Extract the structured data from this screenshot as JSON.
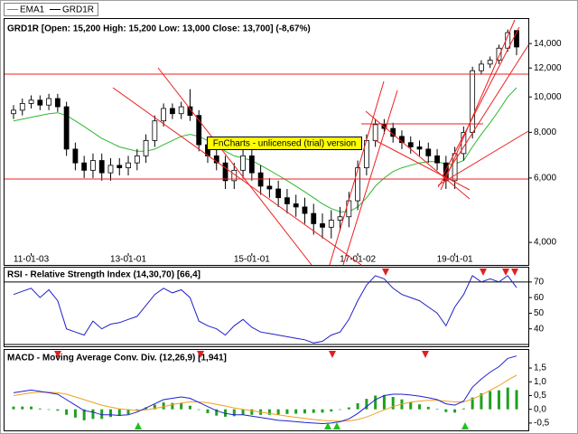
{
  "chart_data": [
    {
      "type": "candlestick",
      "name": "GRD1R",
      "title": "GRD1R [Open: 15,200  High: 15,200  Low: 13,000  Close: 13,700] (-8,67%)",
      "watermark": "FnCharts - unlicensed (trial) version",
      "categories": [
        null,
        null,
        "11-01-03",
        null,
        null,
        null,
        null,
        null,
        null,
        null,
        null,
        null,
        null,
        "13-01-01",
        null,
        null,
        null,
        null,
        null,
        null,
        null,
        null,
        null,
        null,
        null,
        null,
        null,
        "15-01-01",
        null,
        null,
        null,
        null,
        null,
        null,
        null,
        null,
        null,
        null,
        null,
        "17-01-02",
        null,
        null,
        null,
        null,
        null,
        null,
        null,
        null,
        null,
        null,
        "19-01-01",
        null,
        null,
        null,
        null,
        null,
        null,
        null
      ],
      "open": [
        9000,
        9200,
        9600,
        9800,
        9500,
        9900,
        9400,
        7200,
        6600,
        6300,
        6700,
        6200,
        6500,
        6400,
        6600,
        6900,
        7600,
        8600,
        9300,
        9000,
        9400,
        8900,
        7400,
        6900,
        6600,
        5900,
        6300,
        6900,
        6200,
        5700,
        5600,
        5300,
        5100,
        5000,
        4800,
        4500,
        4400,
        4600,
        4700,
        5200,
        6400,
        7600,
        8400,
        8200,
        7800,
        7500,
        7300,
        7200,
        6900,
        6600,
        5900,
        7000,
        8000,
        11800,
        12300,
        12600,
        13600,
        15200
      ],
      "high": [
        9500,
        9900,
        10100,
        10100,
        10200,
        10200,
        9700,
        7500,
        6900,
        7000,
        7000,
        6800,
        6800,
        6900,
        7200,
        7900,
        8900,
        9600,
        9600,
        9700,
        10500,
        9200,
        7700,
        7200,
        6900,
        6600,
        7200,
        7200,
        6500,
        6000,
        5900,
        5600,
        5400,
        5300,
        5100,
        4800,
        4900,
        5000,
        5500,
        6700,
        7900,
        8700,
        8700,
        8500,
        8100,
        7800,
        7600,
        7500,
        7200,
        6900,
        7300,
        8300,
        12100,
        12600,
        12900,
        13900,
        15300,
        15200
      ],
      "low": [
        8700,
        8900,
        9300,
        9200,
        9200,
        9100,
        6900,
        6300,
        6000,
        6000,
        5900,
        5900,
        6100,
        6100,
        6300,
        6600,
        7300,
        8300,
        8700,
        8700,
        8600,
        7100,
        6600,
        6300,
        5600,
        5600,
        6000,
        5900,
        5400,
        5300,
        5000,
        4800,
        4700,
        4500,
        4200,
        4100,
        4100,
        4300,
        4400,
        4900,
        6100,
        7300,
        7900,
        7500,
        7200,
        7000,
        6900,
        6600,
        6300,
        5600,
        5600,
        6700,
        7700,
        11500,
        12000,
        12300,
        13300,
        13000
      ],
      "close": [
        9200,
        9600,
        9800,
        9500,
        9900,
        9400,
        7200,
        6600,
        6300,
        6700,
        6200,
        6500,
        6400,
        6600,
        6900,
        7600,
        8600,
        9300,
        9000,
        9400,
        8900,
        7400,
        6900,
        6600,
        5900,
        6300,
        6900,
        6200,
        5700,
        5600,
        5300,
        5100,
        5000,
        4800,
        4500,
        4400,
        4600,
        4700,
        5200,
        6400,
        7600,
        8400,
        8200,
        7800,
        7500,
        7300,
        7200,
        6900,
        6600,
        5900,
        7000,
        8000,
        11800,
        12300,
        12600,
        13600,
        15000,
        13700
      ],
      "color_up": "#ffffff",
      "color_down": "#000000",
      "series": [
        {
          "name": "EMA1",
          "color": "#2db82d",
          "values": [
            8600,
            8700,
            8800,
            8900,
            9000,
            9050,
            8900,
            8600,
            8300,
            8000,
            7700,
            7500,
            7300,
            7200,
            7100,
            7100,
            7200,
            7400,
            7600,
            7800,
            7900,
            7800,
            7600,
            7400,
            7100,
            6900,
            6800,
            6700,
            6500,
            6300,
            6100,
            5900,
            5700,
            5500,
            5300,
            5100,
            4950,
            4850,
            4850,
            5000,
            5300,
            5700,
            6000,
            6250,
            6400,
            6500,
            6600,
            6650,
            6650,
            6550,
            6550,
            6700,
            7300,
            7900,
            8500,
            9200,
            10000,
            10600
          ]
        }
      ],
      "log_scale": true,
      "ylim": [
        3780,
        16250
      ],
      "yticks": [
        {
          "value": 4000,
          "label": "4,000"
        },
        {
          "value": 6000,
          "label": "6,000"
        },
        {
          "value": 8000,
          "label": "8,000"
        },
        {
          "value": 10000,
          "label": "10,000"
        },
        {
          "value": 12000,
          "label": "12,000"
        },
        {
          "value": 14000,
          "label": "14,000"
        }
      ]
    },
    {
      "type": "line",
      "title": "RSI - Relative Strength Index (14,30,70) [66,4]",
      "series": [
        {
          "color": "#2020c8",
          "values": [
            62,
            64,
            66,
            60,
            65,
            58,
            40,
            38,
            36,
            45,
            40,
            43,
            44,
            46,
            48,
            55,
            62,
            66,
            63,
            65,
            60,
            45,
            42,
            40,
            36,
            42,
            46,
            41,
            38,
            37,
            36,
            35,
            34,
            33,
            31,
            32,
            36,
            38,
            46,
            58,
            68,
            74,
            72,
            66,
            62,
            60,
            58,
            54,
            50,
            42,
            54,
            62,
            74,
            70,
            72,
            70,
            74,
            66.4
          ]
        }
      ],
      "levels": [
        30,
        70
      ],
      "ylim": [
        30,
        78
      ],
      "yticks": [
        40,
        50,
        60,
        70
      ]
    },
    {
      "type": "line",
      "title": "MACD - Moving Average Conv. Div. (12,26,9) [1,941]",
      "series": [
        {
          "type": "bar",
          "color": "#20a020",
          "values": [
            0.1,
            0.1,
            0.1,
            0.03,
            -0.02,
            -0.05,
            -0.2,
            -0.3,
            -0.4,
            -0.35,
            -0.35,
            -0.28,
            -0.24,
            -0.18,
            -0.06,
            0.07,
            0.17,
            0.25,
            0.23,
            0.22,
            0.13,
            -0.02,
            -0.14,
            -0.23,
            -0.27,
            -0.25,
            -0.2,
            -0.2,
            -0.2,
            -0.2,
            -0.2,
            -0.17,
            -0.16,
            -0.15,
            -0.13,
            -0.12,
            -0.08,
            -0.02,
            0.07,
            0.22,
            0.38,
            0.5,
            0.52,
            0.45,
            0.36,
            0.26,
            0.18,
            0.09,
            0.02,
            -0.1,
            -0.12,
            0.03,
            0.43,
            0.58,
            0.66,
            0.69,
            0.79,
            0.7
          ]
        },
        {
          "color": "#f0a020",
          "values": [
            0.5,
            0.55,
            0.6,
            0.62,
            0.62,
            0.6,
            0.55,
            0.45,
            0.35,
            0.25,
            0.15,
            0.08,
            0.02,
            -0.02,
            -0.04,
            -0.02,
            0.03,
            0.1,
            0.17,
            0.23,
            0.27,
            0.27,
            0.24,
            0.18,
            0.12,
            0.05,
            0,
            -0.05,
            -0.1,
            -0.15,
            -0.2,
            -0.25,
            -0.29,
            -0.33,
            -0.37,
            -0.4,
            -0.42,
            -0.43,
            -0.42,
            -0.37,
            -0.28,
            -0.15,
            -0.02,
            0.1,
            0.19,
            0.26,
            0.3,
            0.33,
            0.33,
            0.3,
            0.27,
            0.27,
            0.37,
            0.52,
            0.69,
            0.86,
            1.06,
            1.24
          ]
        },
        {
          "color": "#2020d0",
          "values": [
            0.6,
            0.65,
            0.7,
            0.65,
            0.6,
            0.55,
            0.35,
            0.15,
            -0.05,
            -0.1,
            -0.2,
            -0.2,
            -0.22,
            -0.2,
            -0.1,
            0.05,
            0.2,
            0.35,
            0.4,
            0.45,
            0.4,
            0.25,
            0.1,
            -0.05,
            -0.15,
            -0.2,
            -0.2,
            -0.25,
            -0.3,
            -0.35,
            -0.4,
            -0.42,
            -0.45,
            -0.48,
            -0.5,
            -0.52,
            -0.5,
            -0.45,
            -0.35,
            -0.15,
            0.1,
            0.35,
            0.5,
            0.55,
            0.55,
            0.52,
            0.48,
            0.42,
            0.35,
            0.2,
            0.15,
            0.3,
            0.8,
            1.1,
            1.35,
            1.55,
            1.85,
            1.94
          ]
        }
      ],
      "ylim": [
        -0.7,
        2.06
      ],
      "yticks": [
        {
          "value": -0.5,
          "label": "-0,5"
        },
        {
          "value": 0,
          "label": "0,0"
        },
        {
          "value": 0.5,
          "label": "0,5"
        },
        {
          "value": 1,
          "label": "1,0"
        },
        {
          "value": 1.5,
          "label": "1,5"
        }
      ]
    }
  ]
}
